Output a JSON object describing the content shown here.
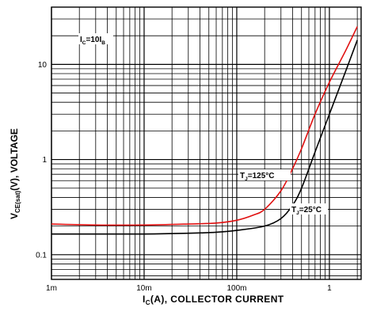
{
  "chart_data": {
    "type": "line",
    "x_scale": "log",
    "y_scale": "log",
    "xlim": [
      0.001,
      2.2
    ],
    "ylim": [
      0.055,
      40
    ],
    "grid": true,
    "grid_style": "log major and minor",
    "xlabel": {
      "main": "I",
      "sub": "C",
      "rest": "(A), COLLECTOR CURRENT"
    },
    "ylabel": {
      "main": "V",
      "sub": "CE(sat)",
      "rest": "(V), VOLTAGE"
    },
    "x_ticks": [
      {
        "value": 0.001,
        "label": "1m"
      },
      {
        "value": 0.01,
        "label": "10m"
      },
      {
        "value": 0.1,
        "label": "100m"
      },
      {
        "value": 1,
        "label": "1"
      }
    ],
    "y_ticks": [
      {
        "value": 0.1,
        "label": "0.1"
      },
      {
        "value": 1,
        "label": "1"
      },
      {
        "value": 10,
        "label": "10"
      }
    ],
    "condition": {
      "parts": [
        {
          "t": "I",
          "sub": false
        },
        {
          "t": "C",
          "sub": true
        },
        {
          "t": "=10I",
          "sub": false
        },
        {
          "t": "B",
          "sub": true
        }
      ]
    },
    "series": [
      {
        "name": "T_J=125°C",
        "label": {
          "parts": [
            {
              "t": "T",
              "sub": false
            },
            {
              "t": "J",
              "sub": true
            },
            {
              "t": "=125°C",
              "sub": false
            }
          ]
        },
        "color": "#e01010",
        "x": [
          0.001,
          0.003,
          0.01,
          0.03,
          0.06,
          0.1,
          0.15,
          0.2,
          0.3,
          0.4,
          0.5,
          0.7,
          1.0,
          1.5,
          2.0
        ],
        "y": [
          0.21,
          0.205,
          0.205,
          0.21,
          0.215,
          0.23,
          0.26,
          0.3,
          0.47,
          0.8,
          1.3,
          3.0,
          6.5,
          14,
          25
        ]
      },
      {
        "name": "T_J=25°C",
        "label": {
          "parts": [
            {
              "t": "T",
              "sub": false
            },
            {
              "t": "J",
              "sub": true
            },
            {
              "t": "=25°C",
              "sub": false
            }
          ]
        },
        "color": "#000000",
        "x": [
          0.001,
          0.003,
          0.01,
          0.03,
          0.06,
          0.1,
          0.2,
          0.3,
          0.4,
          0.5,
          0.7,
          1.0,
          1.5,
          2.0
        ],
        "y": [
          0.165,
          0.165,
          0.165,
          0.168,
          0.172,
          0.18,
          0.2,
          0.24,
          0.33,
          0.5,
          1.2,
          3.0,
          8.5,
          18
        ]
      }
    ]
  }
}
